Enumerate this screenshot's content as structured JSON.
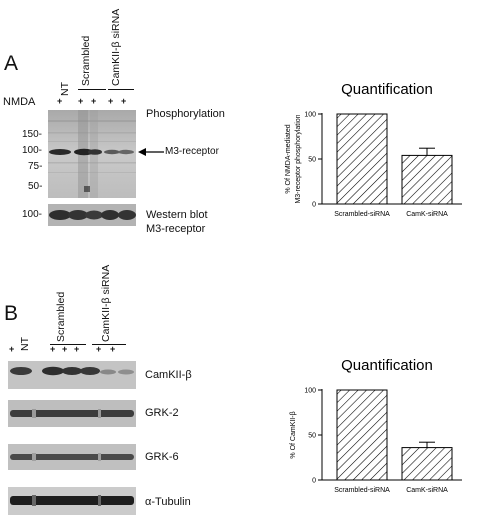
{
  "panel_a": {
    "letter": "A",
    "nmda_label": "NMDA",
    "lanes": {
      "nt": "NT",
      "scrambled": "Scrambled",
      "camkii_sirna": "CamKII-β siRNA"
    },
    "plus": "+",
    "phosphorylation_label": "Phosphorylation",
    "arrow_label": "M3-receptor",
    "mw_markers": [
      "150-",
      "100-",
      "75-",
      "50-"
    ],
    "wb_marker": "100-",
    "wb_label_1": "Western blot",
    "wb_label_2": "M3-receptor"
  },
  "panel_b": {
    "letter": "B",
    "lanes": {
      "nt": "NT",
      "scrambled": "Scrambled",
      "camkii_sirna": "CamKII-β siRNA"
    },
    "plus": "+",
    "blots": [
      "CamKII-β",
      "GRK-2",
      "GRK-6",
      "α-Tubulin"
    ]
  },
  "chart_data": [
    {
      "type": "bar",
      "title": "Quantification",
      "categories": [
        "Scrambled-siRNA",
        "CamK-siRNA"
      ],
      "values": [
        100,
        54
      ],
      "errors": [
        0,
        8
      ],
      "ylabel_line1": "% Of NMDA-mediated",
      "ylabel_line2": "M3-receptor phosphorylation",
      "ylim": [
        0,
        100
      ],
      "yticks": [
        "0",
        "50",
        "100"
      ],
      "pattern": "diagonal-hatch"
    },
    {
      "type": "bar",
      "title": "Quantification",
      "categories": [
        "Scrambled-siRNA",
        "CamK-siRNA"
      ],
      "values": [
        100,
        36
      ],
      "errors": [
        0,
        6
      ],
      "ylabel_line1": "% Of CamKII-β",
      "ylim": [
        0,
        100
      ],
      "yticks": [
        "0",
        "50",
        "100"
      ],
      "pattern": "diagonal-hatch"
    }
  ]
}
